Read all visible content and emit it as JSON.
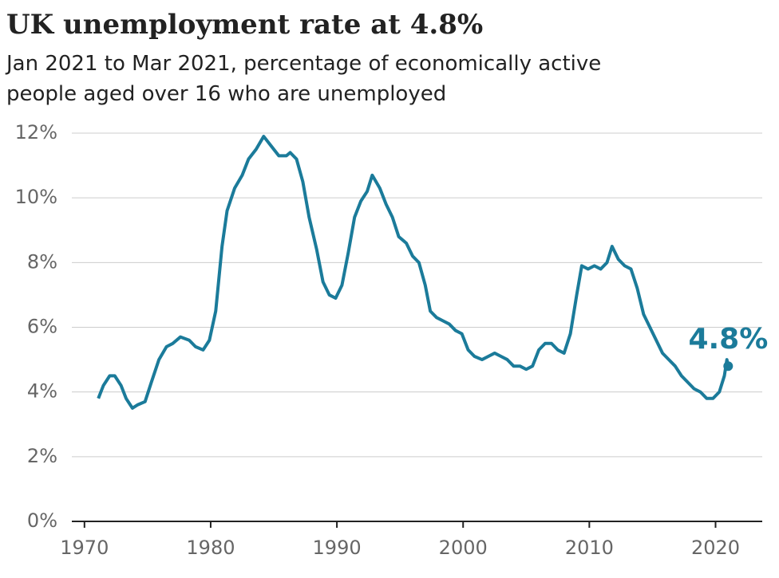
{
  "chart_data": {
    "type": "line",
    "title": "UK unemployment rate at 4.8%",
    "subtitle_lines": [
      "Jan 2021 to Mar 2021, percentage of economically active",
      "people aged over 16 who are unemployed"
    ],
    "annotation": "4.8%",
    "color": "#1b7b9a",
    "grid": true,
    "xlim": [
      1969,
      2023.7
    ],
    "ylim": [
      0,
      12
    ],
    "xticks": [
      1970,
      1980,
      1990,
      2000,
      2010,
      2020
    ],
    "yticks": [
      {
        "value": 0,
        "label": "0%"
      },
      {
        "value": 2,
        "label": "2%"
      },
      {
        "value": 4,
        "label": "4%"
      },
      {
        "value": 6,
        "label": "6%"
      },
      {
        "value": 8,
        "label": "8%"
      },
      {
        "value": 10,
        "label": "10%"
      },
      {
        "value": 12,
        "label": "12%"
      }
    ],
    "x": [
      1971.1,
      1971.5,
      1972.0,
      1972.4,
      1972.9,
      1973.3,
      1973.8,
      1974.2,
      1974.8,
      1975.3,
      1975.9,
      1976.5,
      1977.0,
      1977.6,
      1978.3,
      1978.8,
      1979.4,
      1979.9,
      1980.4,
      1980.9,
      1981.3,
      1981.9,
      1982.5,
      1983.0,
      1983.6,
      1984.2,
      1984.8,
      1985.4,
      1986.0,
      1986.3,
      1986.8,
      1987.3,
      1987.8,
      1988.4,
      1988.9,
      1989.4,
      1989.9,
      1990.4,
      1990.9,
      1991.4,
      1991.9,
      1992.4,
      1992.8,
      1993.4,
      1993.9,
      1994.4,
      1994.9,
      1995.5,
      1996.0,
      1996.5,
      1997.0,
      1997.4,
      1997.9,
      1998.4,
      1998.9,
      1999.4,
      1999.9,
      2000.4,
      2000.9,
      2001.5,
      2002.0,
      2002.5,
      2003.0,
      2003.5,
      2004.0,
      2004.5,
      2005.0,
      2005.5,
      2006.0,
      2006.5,
      2007.0,
      2007.5,
      2008.0,
      2008.5,
      2009.0,
      2009.4,
      2009.9,
      2010.4,
      2010.9,
      2011.4,
      2011.8,
      2012.3,
      2012.8,
      2013.3,
      2013.8,
      2014.3,
      2014.8,
      2015.3,
      2015.8,
      2016.3,
      2016.8,
      2017.3,
      2017.8,
      2018.3,
      2018.8,
      2019.3,
      2019.8,
      2020.3,
      2020.7,
      2020.9,
      2021.0
    ],
    "series": [
      {
        "name": "Unemployment rate",
        "color": "#1b7b9a",
        "values": [
          3.8,
          4.2,
          4.5,
          4.5,
          4.2,
          3.8,
          3.5,
          3.6,
          3.7,
          4.3,
          5.0,
          5.4,
          5.5,
          5.7,
          5.6,
          5.4,
          5.3,
          5.6,
          6.5,
          8.5,
          9.6,
          10.3,
          10.7,
          11.2,
          11.5,
          11.9,
          11.6,
          11.3,
          11.3,
          11.4,
          11.2,
          10.5,
          9.4,
          8.4,
          7.4,
          7.0,
          6.9,
          7.3,
          8.3,
          9.4,
          9.9,
          10.2,
          10.7,
          10.3,
          9.8,
          9.4,
          8.8,
          8.6,
          8.2,
          8.0,
          7.3,
          6.5,
          6.3,
          6.2,
          6.1,
          5.9,
          5.8,
          5.3,
          5.1,
          5.0,
          5.1,
          5.2,
          5.1,
          5.0,
          4.8,
          4.8,
          4.7,
          4.8,
          5.3,
          5.5,
          5.5,
          5.3,
          5.2,
          5.8,
          7.0,
          7.9,
          7.8,
          7.9,
          7.8,
          8.0,
          8.5,
          8.1,
          7.9,
          7.8,
          7.2,
          6.4,
          6.0,
          5.6,
          5.2,
          5.0,
          4.8,
          4.5,
          4.3,
          4.1,
          4.0,
          3.8,
          3.8,
          4.0,
          4.5,
          5.0,
          4.8
        ]
      }
    ]
  }
}
